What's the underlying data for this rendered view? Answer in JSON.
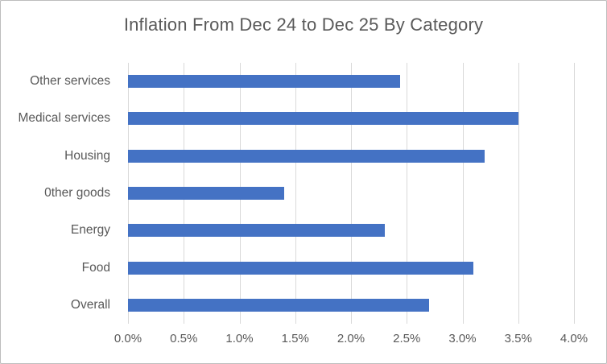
{
  "chart_data": {
    "type": "bar",
    "orientation": "horizontal",
    "title": "Inflation From Dec 24 to Dec 25 By Category",
    "categories": [
      "Other services",
      "Medical services",
      "Housing",
      "0ther goods",
      "Energy",
      "Food",
      "Overall"
    ],
    "values": [
      2.44,
      3.5,
      3.2,
      1.4,
      2.3,
      3.1,
      2.7
    ],
    "value_unit": "%",
    "xlabel": "",
    "ylabel": "",
    "xlim": [
      0,
      4
    ],
    "x_tick_labels": [
      "0.0%",
      "0.5%",
      "1.0%",
      "1.5%",
      "2.0%",
      "2.5%",
      "3.0%",
      "3.5%",
      "4.0%"
    ],
    "grid": true,
    "legend": false,
    "colors": {
      "bar": "#4472C4",
      "text": "#595959",
      "gridline": "#D9D9D9",
      "background": "#FFFFFF",
      "frame_border": "#BDBDBD"
    }
  }
}
